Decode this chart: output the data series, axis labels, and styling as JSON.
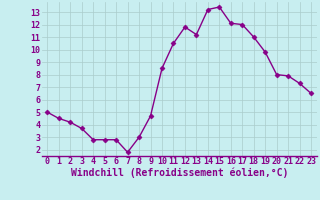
{
  "x": [
    0,
    1,
    2,
    3,
    4,
    5,
    6,
    7,
    8,
    9,
    10,
    11,
    12,
    13,
    14,
    15,
    16,
    17,
    18,
    19,
    20,
    21,
    22,
    23
  ],
  "y": [
    5.0,
    4.5,
    4.2,
    3.7,
    2.8,
    2.8,
    2.8,
    1.8,
    3.0,
    4.7,
    8.5,
    10.5,
    11.8,
    11.2,
    13.2,
    13.4,
    12.1,
    12.0,
    11.0,
    9.8,
    8.0,
    7.9,
    7.3,
    6.5
  ],
  "line_color": "#880088",
  "marker": "D",
  "marker_size": 2.5,
  "xlabel": "Windchill (Refroidissement éolien,°C)",
  "xlim": [
    -0.5,
    23.5
  ],
  "ylim": [
    1.5,
    13.8
  ],
  "yticks": [
    2,
    3,
    4,
    5,
    6,
    7,
    8,
    9,
    10,
    11,
    12,
    13
  ],
  "xticks": [
    0,
    1,
    2,
    3,
    4,
    5,
    6,
    7,
    8,
    9,
    10,
    11,
    12,
    13,
    14,
    15,
    16,
    17,
    18,
    19,
    20,
    21,
    22,
    23
  ],
  "bg_color": "#c8eef0",
  "grid_color": "#aacccc",
  "label_color": "#880088",
  "tick_label_color": "#880088",
  "xlabel_fontsize": 7.0,
  "tick_fontsize": 6.0,
  "line_width": 1.0
}
